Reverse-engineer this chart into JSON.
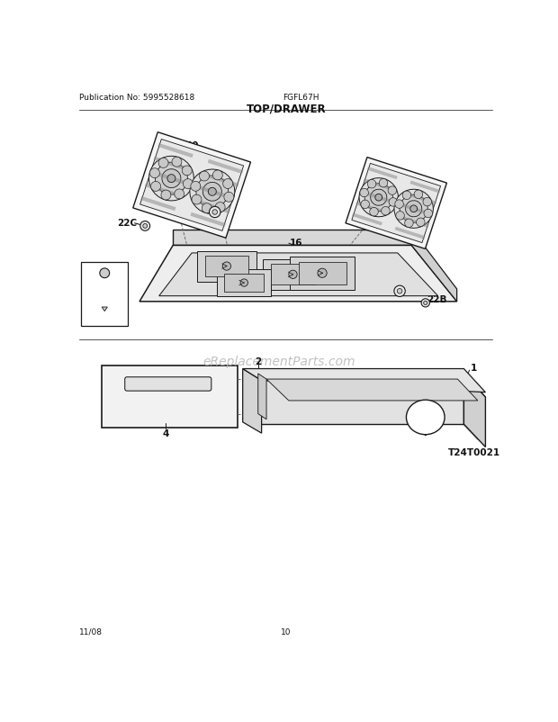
{
  "pub_no": "Publication No: 5995528618",
  "model": "FGFL67H",
  "section_title": "TOP/DRAWER",
  "date": "11/08",
  "page": "10",
  "watermark": "eReplacementParts.com",
  "diagram_code": "T24T0021",
  "bg_color": "#ffffff",
  "lc": "#1a1a1a",
  "tc": "#111111",
  "gray1": "#e8e8e8",
  "gray2": "#d0d0d0",
  "gray3": "#c0c0c0"
}
